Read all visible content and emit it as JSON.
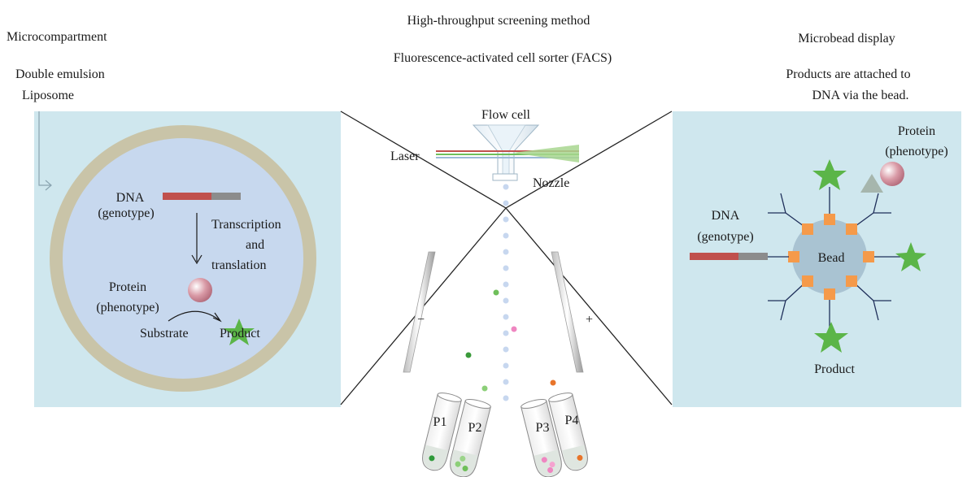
{
  "left": {
    "heading": "Microcompartment",
    "type1": "Double emulsion",
    "type2": "Liposome",
    "dna_label": "DNA",
    "dna_sub": "(genotype)",
    "transcription1": "Transcription",
    "transcription2": "and",
    "transcription3": "translation",
    "protein_label": "Protein",
    "protein_sub": "(phenotype)",
    "substrate": "Substrate",
    "product": "Product"
  },
  "center": {
    "title": "High-throughput screening method",
    "subtitle": "Fluorescence-activated cell sorter (FACS)",
    "flow_cell": "Flow cell",
    "laser": "Laser",
    "nozzle": "Nozzle",
    "minus": "−",
    "plus": "+",
    "tubes": [
      "P1",
      "P2",
      "P3",
      "P4"
    ]
  },
  "right": {
    "heading": "Microbead display",
    "desc1": "Products are attached to",
    "desc2": "DNA via the bead.",
    "protein_label": "Protein",
    "protein_sub": "(phenotype)",
    "dna_label": "DNA",
    "dna_sub": "(genotype)",
    "bead": "Bead",
    "product": "Product"
  },
  "colors": {
    "panel_bg": "#cfe7ee",
    "liposome_ring": "#c9c4a8",
    "liposome_inner": "#c7d8ee",
    "dna_red": "#c0504d",
    "dna_gray": "#8c8c8c",
    "product_green": "#5bb548",
    "bead": "#a9c3d2",
    "attach_orange": "#f59a4a",
    "droplet_blue": "#c7d7ef",
    "droplet_green": "#6fbf5a",
    "droplet_pink": "#ef86c1",
    "droplet_orange": "#e8742a"
  }
}
